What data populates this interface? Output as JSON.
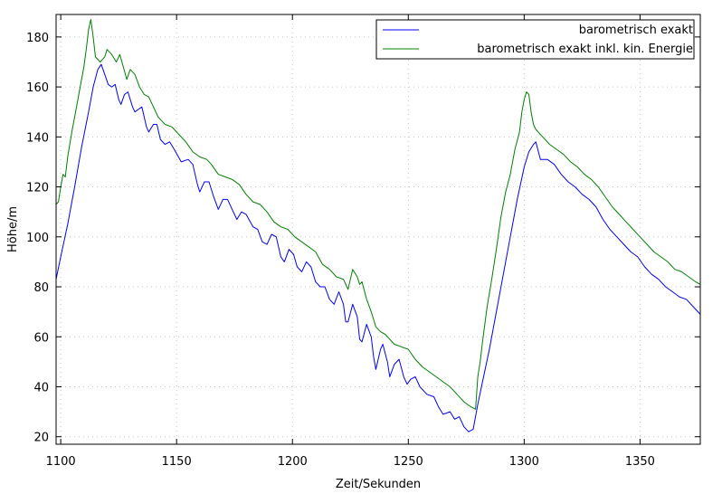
{
  "chart_data": {
    "type": "line",
    "xlabel": "Zeit/Sekunden",
    "ylabel": "Höhe/m",
    "xlim": [
      1098,
      1376
    ],
    "ylim": [
      17,
      189
    ],
    "xticks": [
      1100,
      1150,
      1200,
      1250,
      1300,
      1350
    ],
    "yticks": [
      20,
      40,
      60,
      80,
      100,
      120,
      140,
      160,
      180
    ],
    "grid": true,
    "legend_position": "top-right",
    "series": [
      {
        "name": "barometrisch exakt",
        "color": "#0000ff",
        "points": [
          [
            1098,
            83
          ],
          [
            1100,
            92
          ],
          [
            1103,
            105
          ],
          [
            1106,
            120
          ],
          [
            1109,
            136
          ],
          [
            1112,
            150
          ],
          [
            1114,
            160
          ],
          [
            1116,
            167
          ],
          [
            1117.5,
            169
          ],
          [
            1119,
            165
          ],
          [
            1120.5,
            161
          ],
          [
            1122,
            160
          ],
          [
            1123.5,
            161
          ],
          [
            1125,
            155
          ],
          [
            1126,
            153
          ],
          [
            1127.5,
            157
          ],
          [
            1129,
            158
          ],
          [
            1131,
            152
          ],
          [
            1132,
            150
          ],
          [
            1133.5,
            151
          ],
          [
            1135,
            152
          ],
          [
            1137,
            144
          ],
          [
            1138,
            142
          ],
          [
            1140,
            145
          ],
          [
            1141.5,
            145
          ],
          [
            1143,
            139
          ],
          [
            1145,
            137
          ],
          [
            1147,
            138
          ],
          [
            1149,
            135
          ],
          [
            1152,
            130
          ],
          [
            1155,
            131
          ],
          [
            1157,
            129
          ],
          [
            1159,
            121
          ],
          [
            1160,
            118
          ],
          [
            1162,
            122
          ],
          [
            1164,
            122
          ],
          [
            1166,
            116
          ],
          [
            1168,
            111
          ],
          [
            1170,
            115
          ],
          [
            1172,
            115
          ],
          [
            1174,
            111
          ],
          [
            1176,
            107
          ],
          [
            1178,
            110
          ],
          [
            1180,
            109
          ],
          [
            1183,
            104
          ],
          [
            1185,
            103
          ],
          [
            1187,
            98
          ],
          [
            1189,
            97
          ],
          [
            1191,
            101
          ],
          [
            1193,
            100
          ],
          [
            1195,
            92
          ],
          [
            1196.5,
            90
          ],
          [
            1198.5,
            95
          ],
          [
            1200.5,
            93
          ],
          [
            1202,
            88
          ],
          [
            1204,
            86
          ],
          [
            1206,
            90
          ],
          [
            1208,
            88
          ],
          [
            1210,
            82
          ],
          [
            1212,
            80
          ],
          [
            1214,
            80
          ],
          [
            1216,
            75
          ],
          [
            1218,
            73
          ],
          [
            1220,
            78
          ],
          [
            1222,
            73
          ],
          [
            1223,
            66
          ],
          [
            1224,
            66
          ],
          [
            1226,
            73
          ],
          [
            1228,
            68
          ],
          [
            1229,
            59
          ],
          [
            1230,
            58
          ],
          [
            1232,
            65
          ],
          [
            1234,
            60
          ],
          [
            1235,
            52
          ],
          [
            1236,
            47
          ],
          [
            1238,
            55
          ],
          [
            1239,
            57
          ],
          [
            1241,
            50
          ],
          [
            1242,
            44
          ],
          [
            1244,
            49
          ],
          [
            1246,
            51
          ],
          [
            1248,
            44
          ],
          [
            1249.5,
            41
          ],
          [
            1251,
            43
          ],
          [
            1253,
            44
          ],
          [
            1255,
            40
          ],
          [
            1258,
            37
          ],
          [
            1261,
            36
          ],
          [
            1263,
            32
          ],
          [
            1265,
            29
          ],
          [
            1268,
            30
          ],
          [
            1270,
            27
          ],
          [
            1272,
            28
          ],
          [
            1274,
            24
          ],
          [
            1276,
            22
          ],
          [
            1278,
            23
          ],
          [
            1280,
            33
          ],
          [
            1282,
            42
          ],
          [
            1285,
            55
          ],
          [
            1288,
            70
          ],
          [
            1291,
            85
          ],
          [
            1294,
            100
          ],
          [
            1297,
            115
          ],
          [
            1300,
            128
          ],
          [
            1302,
            134
          ],
          [
            1304,
            137
          ],
          [
            1305,
            138
          ],
          [
            1307,
            131
          ],
          [
            1310,
            131
          ],
          [
            1313,
            129
          ],
          [
            1316,
            125
          ],
          [
            1319,
            122
          ],
          [
            1322,
            120
          ],
          [
            1325,
            117
          ],
          [
            1328,
            115
          ],
          [
            1331,
            112
          ],
          [
            1334,
            107
          ],
          [
            1337,
            103
          ],
          [
            1340,
            100
          ],
          [
            1343,
            97
          ],
          [
            1346,
            94
          ],
          [
            1349,
            92
          ],
          [
            1352,
            88
          ],
          [
            1355,
            85
          ],
          [
            1358,
            83
          ],
          [
            1361,
            80
          ],
          [
            1364,
            78
          ],
          [
            1367,
            76
          ],
          [
            1370,
            75
          ],
          [
            1373,
            72
          ],
          [
            1376,
            69
          ]
        ]
      },
      {
        "name": "barometrisch exakt inkl. kin. Energie",
        "color": "#008000",
        "points": [
          [
            1098,
            113
          ],
          [
            1099,
            114
          ],
          [
            1100,
            120
          ],
          [
            1101,
            125
          ],
          [
            1102,
            124
          ],
          [
            1103,
            132
          ],
          [
            1105,
            143
          ],
          [
            1107,
            153
          ],
          [
            1108,
            158
          ],
          [
            1110,
            168
          ],
          [
            1111,
            175
          ],
          [
            1112,
            183
          ],
          [
            1113,
            187
          ],
          [
            1114,
            180
          ],
          [
            1115,
            172
          ],
          [
            1117,
            170
          ],
          [
            1119,
            172
          ],
          [
            1120,
            175
          ],
          [
            1122,
            173
          ],
          [
            1124,
            170
          ],
          [
            1125.5,
            173
          ],
          [
            1127,
            168
          ],
          [
            1128.5,
            163
          ],
          [
            1130,
            167
          ],
          [
            1132,
            165
          ],
          [
            1134,
            160
          ],
          [
            1136,
            157
          ],
          [
            1138,
            156
          ],
          [
            1140,
            152
          ],
          [
            1142,
            148
          ],
          [
            1145,
            145
          ],
          [
            1148,
            144
          ],
          [
            1151,
            141
          ],
          [
            1154,
            138
          ],
          [
            1157,
            134
          ],
          [
            1160,
            132
          ],
          [
            1163,
            131
          ],
          [
            1165,
            129
          ],
          [
            1168,
            125
          ],
          [
            1171,
            124
          ],
          [
            1174,
            123
          ],
          [
            1177,
            121
          ],
          [
            1180,
            117
          ],
          [
            1183,
            114
          ],
          [
            1186,
            113
          ],
          [
            1189,
            110
          ],
          [
            1192,
            106
          ],
          [
            1195,
            104
          ],
          [
            1198,
            103
          ],
          [
            1201,
            100
          ],
          [
            1204,
            98
          ],
          [
            1207,
            96
          ],
          [
            1210,
            94
          ],
          [
            1213,
            89
          ],
          [
            1216,
            87
          ],
          [
            1219,
            84
          ],
          [
            1222,
            83
          ],
          [
            1224,
            79
          ],
          [
            1226,
            87
          ],
          [
            1228,
            84
          ],
          [
            1229,
            81
          ],
          [
            1230,
            82
          ],
          [
            1232,
            75
          ],
          [
            1234,
            70
          ],
          [
            1236,
            64
          ],
          [
            1238,
            62
          ],
          [
            1240,
            61
          ],
          [
            1242,
            59
          ],
          [
            1244,
            57
          ],
          [
            1247,
            56
          ],
          [
            1250,
            55
          ],
          [
            1253,
            51
          ],
          [
            1256,
            48
          ],
          [
            1259,
            46
          ],
          [
            1262,
            44
          ],
          [
            1265,
            42
          ],
          [
            1268,
            40
          ],
          [
            1271,
            37
          ],
          [
            1274,
            34
          ],
          [
            1277,
            32
          ],
          [
            1279,
            31
          ],
          [
            1280,
            44
          ],
          [
            1281,
            50
          ],
          [
            1282,
            58
          ],
          [
            1284,
            72
          ],
          [
            1286,
            83
          ],
          [
            1288,
            95
          ],
          [
            1290,
            108
          ],
          [
            1292,
            118
          ],
          [
            1294,
            125
          ],
          [
            1296,
            135
          ],
          [
            1298,
            142
          ],
          [
            1299,
            150
          ],
          [
            1300,
            155
          ],
          [
            1301,
            158
          ],
          [
            1302,
            157
          ],
          [
            1303,
            150
          ],
          [
            1304,
            145
          ],
          [
            1305,
            143
          ],
          [
            1308,
            140
          ],
          [
            1311,
            137
          ],
          [
            1314,
            135
          ],
          [
            1317,
            133
          ],
          [
            1320,
            130
          ],
          [
            1323,
            128
          ],
          [
            1326,
            125
          ],
          [
            1329,
            123
          ],
          [
            1332,
            120
          ],
          [
            1335,
            116
          ],
          [
            1338,
            112
          ],
          [
            1341,
            109
          ],
          [
            1344,
            106
          ],
          [
            1347,
            103
          ],
          [
            1350,
            100
          ],
          [
            1353,
            97
          ],
          [
            1356,
            94
          ],
          [
            1359,
            92
          ],
          [
            1362,
            90
          ],
          [
            1365,
            87
          ],
          [
            1368,
            86
          ],
          [
            1371,
            84
          ],
          [
            1374,
            82
          ],
          [
            1376,
            81
          ]
        ]
      }
    ]
  }
}
